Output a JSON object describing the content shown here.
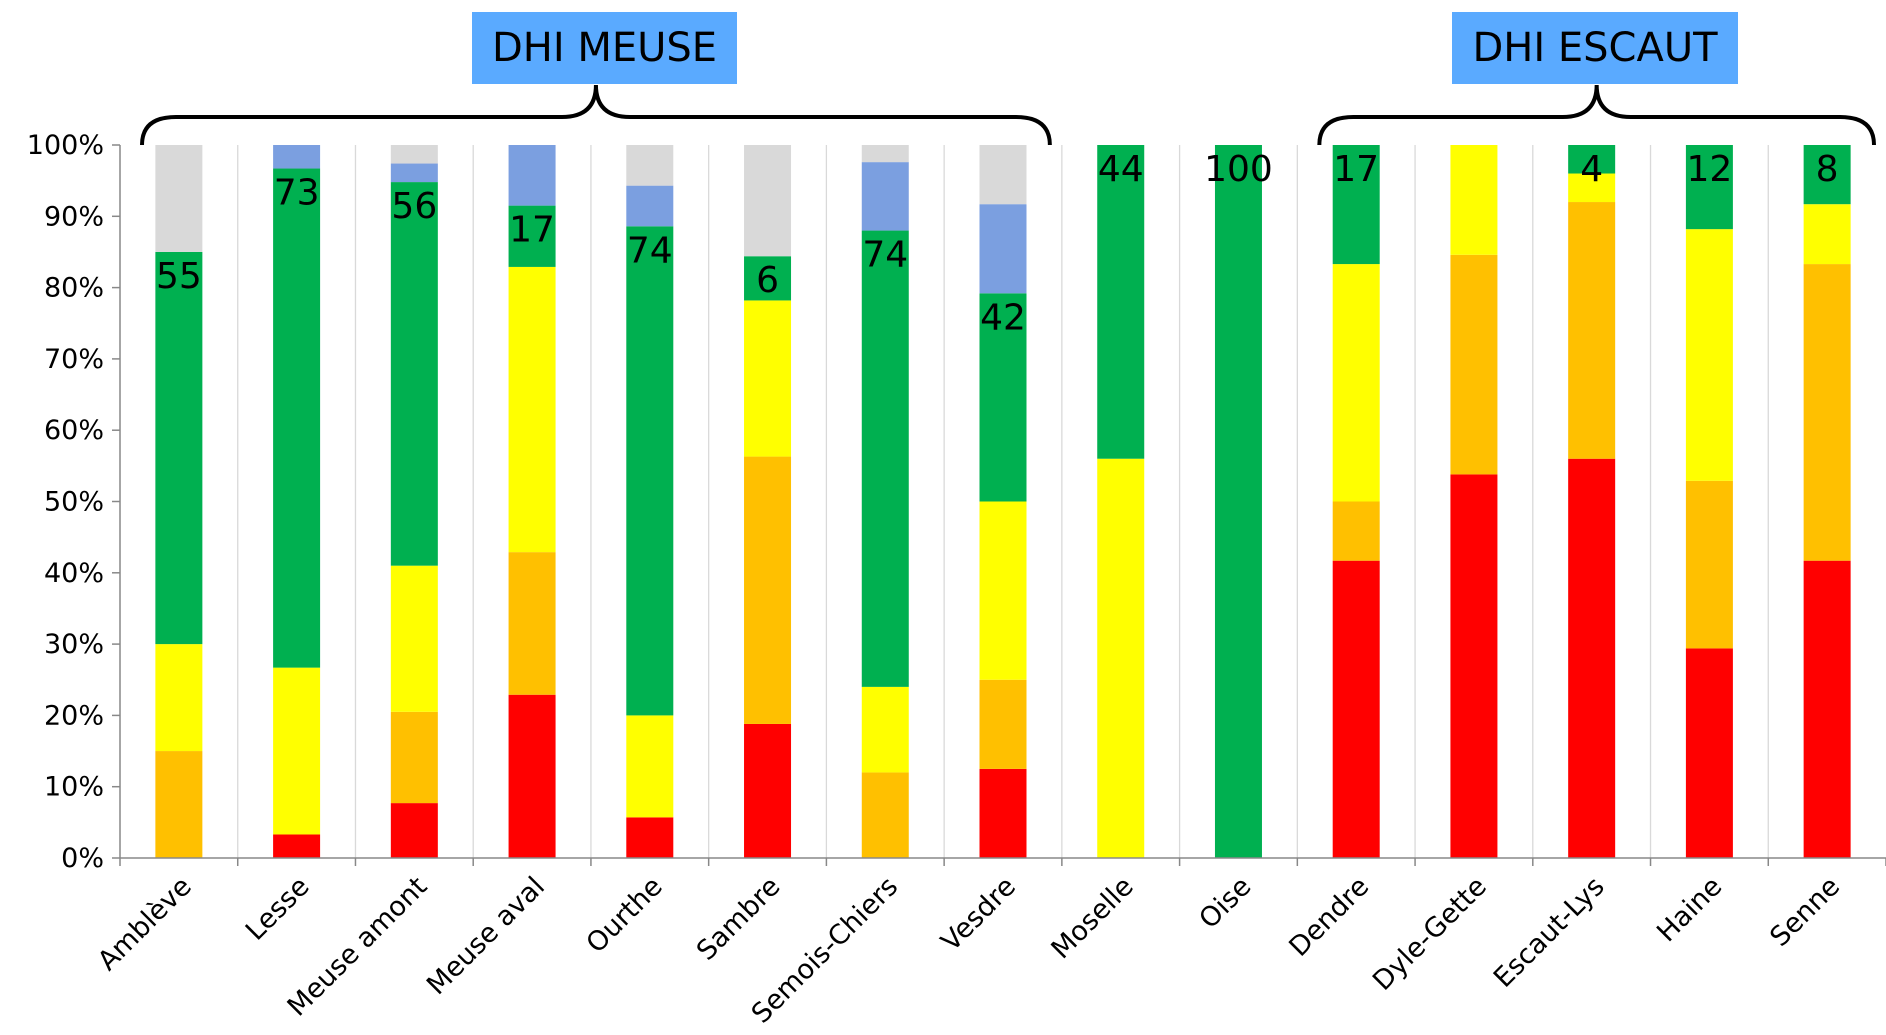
{
  "chart_data": {
    "type": "bar",
    "stacked": true,
    "groups": [
      {
        "label": "DHI MEUSE",
        "categories": [
          "Amblève",
          "Lesse",
          "Meuse amont",
          "Meuse aval",
          "Ourthe",
          "Sambre",
          "Semois-Chiers",
          "Vesdre"
        ]
      },
      {
        "label": "DHI ESCAUT",
        "categories": [
          "Dendre",
          "Dyle-Gette",
          "Escaut-Lys",
          "Haine",
          "Senne"
        ]
      }
    ],
    "categories": [
      "Amblève",
      "Lesse",
      "Meuse amont",
      "Meuse aval",
      "Ourthe",
      "Sambre",
      "Semois-Chiers",
      "Vesdre",
      "Moselle",
      "Oise",
      "Dendre",
      "Dyle-Gette",
      "Escaut-Lys",
      "Haine",
      "Senne"
    ],
    "series": [
      {
        "color": "#ff0000",
        "values": [
          0,
          3.3,
          7.7,
          22.9,
          5.7,
          18.8,
          0,
          12.5,
          0,
          0,
          41.7,
          53.8,
          56,
          29.4,
          41.7
        ]
      },
      {
        "color": "#ffc000",
        "values": [
          15,
          0,
          12.8,
          20,
          0,
          37.5,
          12,
          12.5,
          0,
          0,
          8.3,
          30.8,
          36,
          23.5,
          41.6
        ]
      },
      {
        "color": "#ffff00",
        "values": [
          15,
          23.4,
          20.5,
          40,
          14.3,
          21.9,
          12,
          25,
          56,
          0,
          33.3,
          15.4,
          4,
          35.3,
          8.4
        ]
      },
      {
        "color": "#00b050",
        "values": [
          55,
          70,
          53.8,
          8.6,
          68.6,
          6.2,
          64,
          29.2,
          44,
          100,
          16.7,
          0,
          4,
          11.8,
          8.3
        ]
      },
      {
        "color": "#7b9fe0",
        "values": [
          0,
          3.3,
          2.6,
          8.5,
          5.7,
          0,
          9.6,
          12.5,
          0,
          0,
          0,
          0,
          0,
          0,
          0
        ]
      },
      {
        "color": "#d9d9d9",
        "values": [
          15,
          0,
          2.6,
          0,
          5.7,
          15.6,
          2.4,
          8.3,
          0,
          0,
          0,
          0,
          0,
          0,
          0
        ]
      }
    ],
    "data_labels": [
      "55",
      "73",
      "56",
      "17",
      "74",
      "6",
      "74",
      "42",
      "44",
      "100",
      "17",
      "",
      "4",
      "12",
      "8"
    ],
    "y_ticks": [
      "0%",
      "10%",
      "20%",
      "30%",
      "40%",
      "50%",
      "60%",
      "70%",
      "80%",
      "90%",
      "100%"
    ],
    "ylim": [
      0,
      100
    ],
    "grid": "vertical separators between categories",
    "legend": "none"
  }
}
